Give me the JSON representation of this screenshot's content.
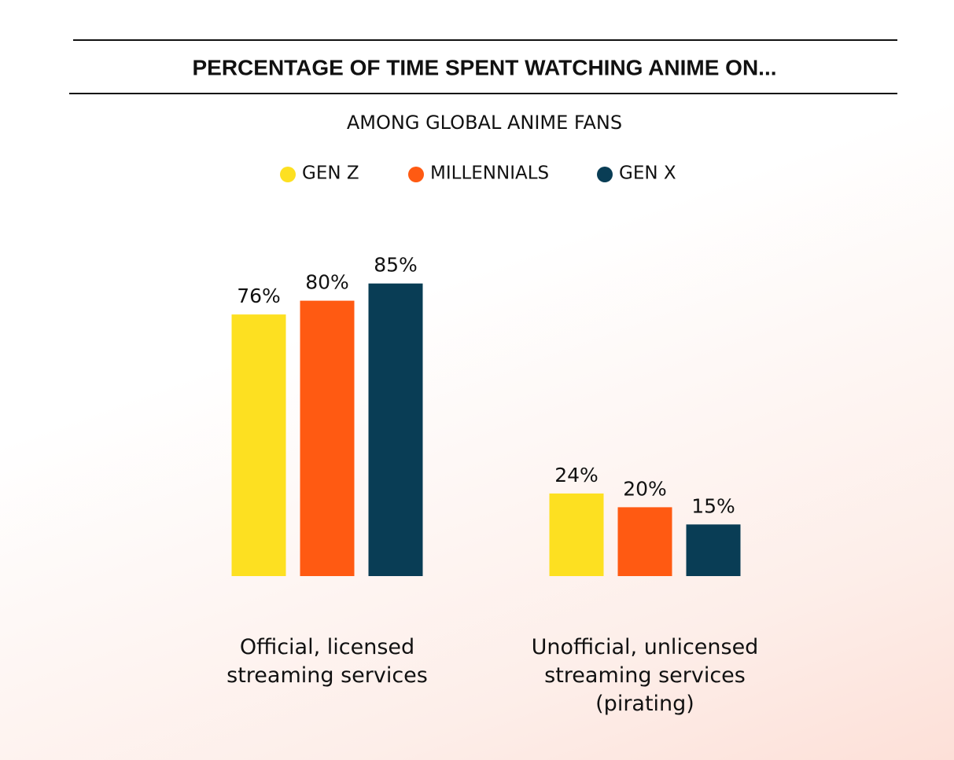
{
  "chart_data": {
    "type": "bar",
    "title": "PERCENTAGE OF TIME SPENT WATCHING ANIME ON...",
    "subtitle": "AMONG GLOBAL ANIME FANS",
    "categories": [
      "Official, licensed streaming services",
      "Unofficial, unlicensed streaming services (pirating)"
    ],
    "series": [
      {
        "name": "GEN Z",
        "color": "#fde021",
        "values": [
          76,
          24
        ],
        "value_labels": [
          "76%",
          "24%"
        ]
      },
      {
        "name": "MILLENNIALS",
        "color": "#ff5a12",
        "values": [
          80,
          20
        ],
        "value_labels": [
          "80%",
          "20%"
        ]
      },
      {
        "name": "GEN X",
        "color": "#093d55",
        "values": [
          85,
          15
        ],
        "value_labels": [
          "85%",
          "15%"
        ]
      }
    ]
  }
}
